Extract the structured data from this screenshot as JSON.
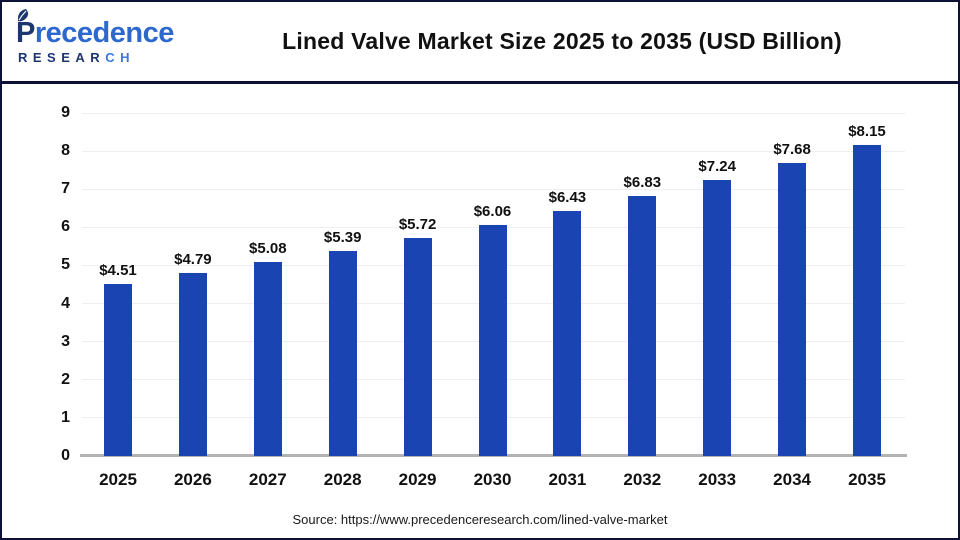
{
  "page": {
    "background": "#ffffff",
    "border_color": "#0d1133"
  },
  "header": {
    "logo": {
      "brand_first_letter": "P",
      "brand_rest": "recedence",
      "brand_line2_main": "RESEAR",
      "brand_line2_accent": "CH",
      "color_primary": "#2d68cf",
      "color_dark": "#1d3572",
      "leaf_icon": "leaf-icon"
    },
    "title": "Lined Valve Market Size 2025 to 2035 (USD Billion)"
  },
  "chart_data": {
    "type": "bar",
    "title": "Lined Valve Market Size 2025 to 2035 (USD Billion)",
    "categories": [
      "2025",
      "2026",
      "2027",
      "2028",
      "2029",
      "2030",
      "2031",
      "2032",
      "2033",
      "2034",
      "2035"
    ],
    "values": [
      4.51,
      4.79,
      5.08,
      5.39,
      5.72,
      6.06,
      6.43,
      6.83,
      7.24,
      7.68,
      8.15
    ],
    "value_labels": [
      "$4.51",
      "$4.79",
      "$5.08",
      "$5.39",
      "$5.72",
      "$6.06",
      "$6.43",
      "$6.83",
      "$7.24",
      "$7.68",
      "$8.15"
    ],
    "xlabel": "",
    "ylabel": "",
    "ylim": [
      0,
      9
    ],
    "yticks": [
      0,
      1,
      2,
      3,
      4,
      5,
      6,
      7,
      8,
      9
    ],
    "grid": true,
    "legend": false,
    "bar_color": "#1a44b1",
    "axis_line_color": "#b3b3b3",
    "gridline_color": "#efefef",
    "label_color": "#111111"
  },
  "footer": {
    "source": "Source: https://www.precedenceresearch.com/lined-valve-market"
  }
}
